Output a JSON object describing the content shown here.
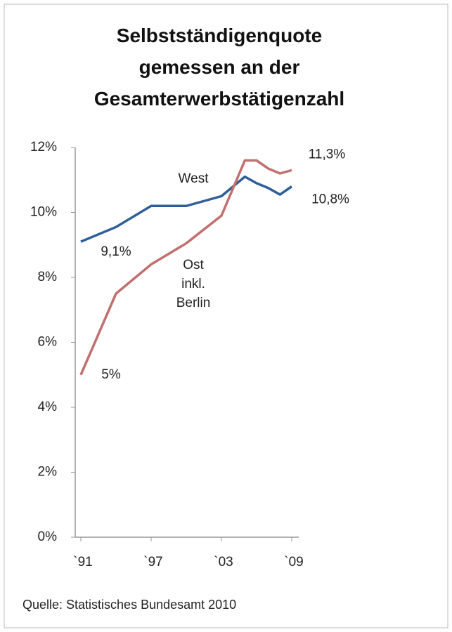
{
  "chart_data": {
    "type": "line",
    "title": "Selbstständigenquote gemessen an der Gesamterwerbstätigenzahl",
    "x": [
      1991,
      1994,
      1997,
      2000,
      2003,
      2005,
      2006,
      2007,
      2008,
      2009
    ],
    "series": [
      {
        "name": "West",
        "color": "#2f5f98",
        "values": [
          9.1,
          9.55,
          10.2,
          10.2,
          10.5,
          11.1,
          10.9,
          10.75,
          10.55,
          10.8
        ],
        "value_labels": [
          "9,1%",
          null,
          null,
          null,
          null,
          null,
          null,
          null,
          null,
          "10,8%"
        ]
      },
      {
        "name": "Ost inkl. Berlin",
        "color": "#c0706e",
        "values": [
          5.0,
          7.5,
          8.4,
          9.05,
          9.9,
          11.6,
          11.6,
          11.35,
          11.2,
          11.3
        ],
        "value_labels": [
          "5%",
          null,
          null,
          null,
          null,
          null,
          null,
          null,
          null,
          "11,3%"
        ]
      }
    ],
    "xlim": [
      1990.5,
      2010
    ],
    "xticks": [
      {
        "value": 1991,
        "label": "`91"
      },
      {
        "value": 1997,
        "label": "`97"
      },
      {
        "value": 2003,
        "label": "`03"
      },
      {
        "value": 2009,
        "label": "`09"
      }
    ],
    "ylim": [
      0,
      12
    ],
    "yticks": [
      {
        "value": 0,
        "label": "0%"
      },
      {
        "value": 2,
        "label": "2%"
      },
      {
        "value": 4,
        "label": "4%"
      },
      {
        "value": 6,
        "label": "6%"
      },
      {
        "value": 8,
        "label": "8%"
      },
      {
        "value": 10,
        "label": "10%"
      },
      {
        "value": 12,
        "label": "12%"
      }
    ],
    "grid": false,
    "source": "Quelle: Statistisches Bundesamt 2010"
  }
}
